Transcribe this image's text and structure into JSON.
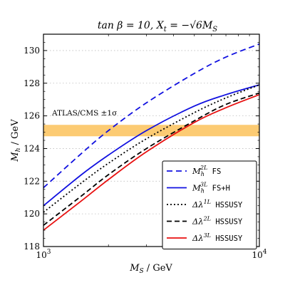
{
  "chart_data": {
    "type": "line",
    "title": "tan β = 10, X",
    "title_sub": "t",
    "title_mid": " = −√6M",
    "title_sub2": "S",
    "xlabel": "M",
    "xlabel_sub": "S",
    "xlabel_unit": " / GeV",
    "ylabel": "M",
    "ylabel_sub": "h",
    "ylabel_unit": " / GeV",
    "x_scale": "log",
    "xlim": [
      1000,
      10000
    ],
    "ylim": [
      118,
      131
    ],
    "x_ticks": [
      {
        "value": 1000,
        "base": "10",
        "exp": "3"
      },
      {
        "value": 10000,
        "base": "10",
        "exp": "4"
      }
    ],
    "y_ticks": [
      118,
      120,
      122,
      124,
      126,
      128,
      130
    ],
    "grid": "horizontal dotted",
    "band": {
      "label": "ATLAS/CMS ±1σ",
      "ymin": 124.75,
      "ymax": 125.45,
      "color": "#fcc25a"
    },
    "legend_position": "bottom-right",
    "series": [
      {
        "name": "M",
        "name_sup": "2L",
        "name_sub": "h",
        "name_code": "FS",
        "color": "#1010e0",
        "dash": "8,5",
        "x": [
          1000,
          1500,
          2000,
          3000,
          5000,
          7000,
          10000
        ],
        "y": [
          121.6,
          123.7,
          125.1,
          126.8,
          128.6,
          129.6,
          130.4
        ]
      },
      {
        "name": "M",
        "name_sup": "3L",
        "name_sub": "h",
        "name_code": "FS+H",
        "color": "#1010e0",
        "dash": "",
        "x": [
          1000,
          1500,
          2000,
          3000,
          5000,
          7000,
          10000
        ],
        "y": [
          120.5,
          122.4,
          123.6,
          125.1,
          126.6,
          127.3,
          127.9
        ]
      },
      {
        "name": "Δλ",
        "name_sup": "1L",
        "name_sub": "",
        "name_code": "HSSUSY",
        "color": "#000000",
        "dash": "2,3",
        "x": [
          1000,
          1500,
          2000,
          3000,
          5000,
          7000,
          10000
        ],
        "y": [
          120.1,
          121.9,
          123.1,
          124.6,
          126.2,
          127.1,
          127.9
        ]
      },
      {
        "name": "Δλ",
        "name_sup": "2L",
        "name_sub": "",
        "name_code": "HSSUSY",
        "color": "#000000",
        "dash": "7,4",
        "x": [
          1000,
          1500,
          2000,
          3000,
          5000,
          7000,
          10000
        ],
        "y": [
          119.3,
          121.1,
          122.4,
          124.0,
          125.7,
          126.7,
          127.4
        ]
      },
      {
        "name": "Δλ",
        "name_sup": "3L",
        "name_sub": "",
        "name_code": "HSSUSY",
        "color": "#e81010",
        "dash": "",
        "x": [
          1000,
          1500,
          2000,
          3000,
          5000,
          7000,
          10000
        ],
        "y": [
          119.0,
          120.8,
          122.1,
          123.8,
          125.6,
          126.5,
          127.3
        ]
      }
    ]
  }
}
